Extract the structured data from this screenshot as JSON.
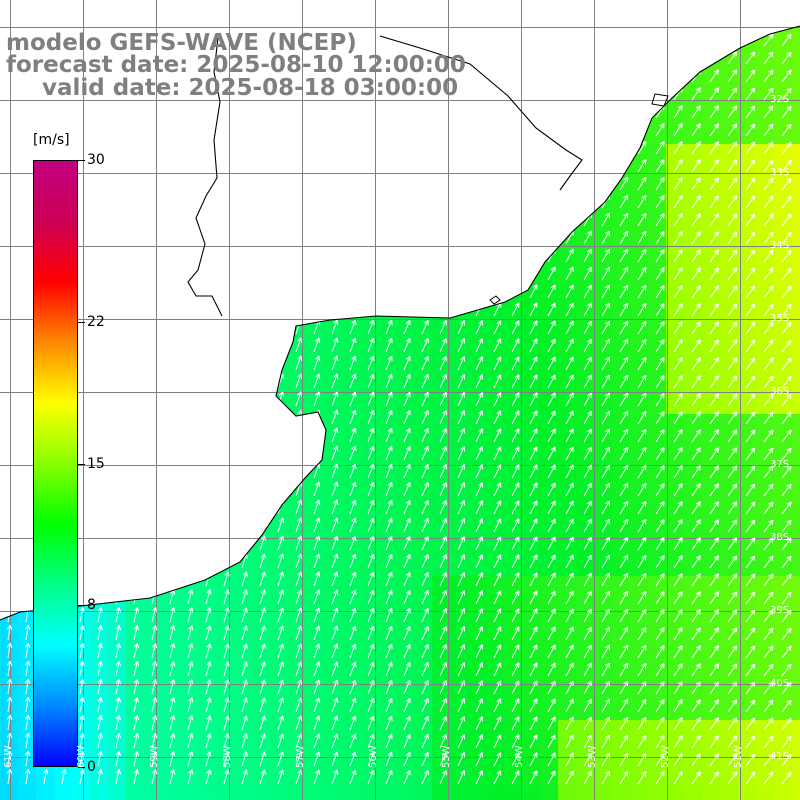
{
  "title": {
    "line1": "modelo GEFS-WAVE (NCEP)",
    "line2": "forecast date: 2025-08-10 12:00:00",
    "line3": "valid date: 2025-08-18 03:00:00"
  },
  "colorbar": {
    "units": "[m/s]",
    "ticks": [
      "30",
      "22",
      "15",
      "8",
      "0"
    ],
    "tick_values": [
      30,
      22,
      15,
      8,
      0
    ],
    "min": 0,
    "max": 30,
    "colors": [
      "#0000ff",
      "#0088ff",
      "#00ffff",
      "#00ff88",
      "#00ff00",
      "#88ff00",
      "#ffff00",
      "#ff8800",
      "#ff0000",
      "#cc0055",
      "#c0007f"
    ]
  },
  "lat_labels": [
    "32S",
    "33S",
    "34S",
    "35S",
    "36S",
    "37S",
    "38S",
    "39S",
    "40S",
    "41S"
  ],
  "lat_values": [
    -32,
    -33,
    -34,
    -35,
    -36,
    -37,
    -38,
    -39,
    -40,
    -41
  ],
  "lon_labels": [
    "61W",
    "60W",
    "59W",
    "58W",
    "57W",
    "56W",
    "55W",
    "54W",
    "53W",
    "52W",
    "51W"
  ],
  "lon_values": [
    -61,
    -60,
    -59,
    -58,
    -57,
    -56,
    -55,
    -54,
    -53,
    -52,
    -51
  ],
  "map_style": {
    "grid_color": "#808080",
    "coast_color": "#000000",
    "land_color": "#ffffff",
    "arrow_color": "#ffffff"
  }
}
